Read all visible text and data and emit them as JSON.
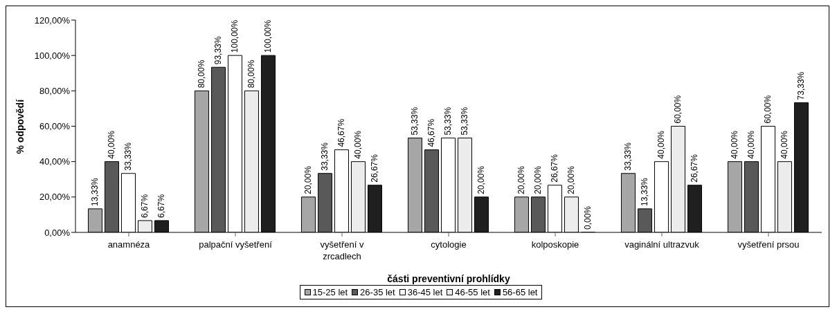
{
  "chart_data": {
    "type": "bar",
    "xlabel": "části preventivní prohlídky",
    "ylabel": "% odpovědí",
    "categories": [
      "anamnéza",
      "palpační vyšetření",
      "vyšetření v zrcadlech",
      "cytologie",
      "kolposkopie",
      "vaginální ultrazvuk",
      "vyšetření prsou"
    ],
    "series": [
      {
        "name": "15-25 let",
        "color": "#a6a6a6",
        "values": [
          13.33,
          80,
          20,
          53.33,
          20,
          33.33,
          40
        ],
        "value_labels": [
          "13,33%",
          "80,00%",
          "20,00%",
          "53,33%",
          "20,00%",
          "33,33%",
          "40,00%"
        ]
      },
      {
        "name": "26-35 let",
        "color": "#595959",
        "values": [
          40,
          93.33,
          33.33,
          46.67,
          20,
          13.33,
          40
        ],
        "value_labels": [
          "40,00%",
          "93,33%",
          "33,33%",
          "46,67%",
          "20,00%",
          "13,33%",
          "40,00%"
        ]
      },
      {
        "name": "36-45 let",
        "color": "#ffffff",
        "values": [
          33.33,
          100,
          46.67,
          53.33,
          26.67,
          40,
          60
        ],
        "value_labels": [
          "33,33%",
          "100,00%",
          "46,67%",
          "53,33%",
          "26,67%",
          "40,00%",
          "60,00%"
        ]
      },
      {
        "name": "46-55 let",
        "color": "#ececec",
        "values": [
          6.67,
          80,
          40,
          53.33,
          20,
          60,
          40
        ],
        "value_labels": [
          "6,67%",
          "80,00%",
          "40,00%",
          "53,33%",
          "20,00%",
          "60,00%",
          "40,00%"
        ]
      },
      {
        "name": "56-65 let",
        "color": "#1f1f1f",
        "values": [
          6.67,
          100,
          26.67,
          20,
          0,
          26.67,
          73.33
        ],
        "value_labels": [
          "6,67%",
          "100,00%",
          "26,67%",
          "20,00%",
          "0,00%",
          "26,67%",
          "73,33%"
        ]
      }
    ],
    "ylim": [
      0,
      120
    ],
    "yticks": [
      {
        "value": 0,
        "label": "0,00%"
      },
      {
        "value": 20,
        "label": "20,00%"
      },
      {
        "value": 40,
        "label": "40,00%"
      },
      {
        "value": 60,
        "label": "60,00%"
      },
      {
        "value": 80,
        "label": "80,00%"
      },
      {
        "value": 100,
        "label": "100,00%"
      },
      {
        "value": 120,
        "label": "120,00%"
      }
    ],
    "grid": false,
    "legend": "bottom"
  }
}
